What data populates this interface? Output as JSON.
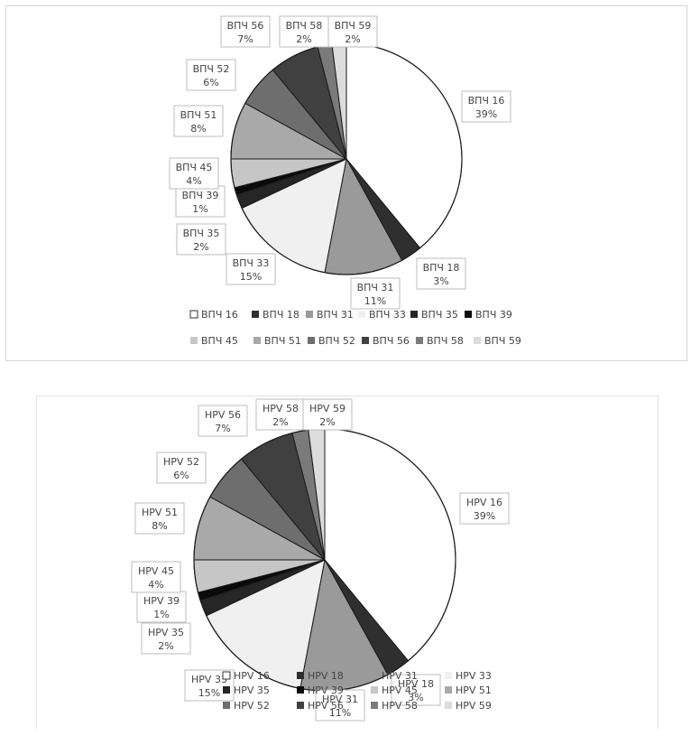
{
  "charts": [
    {
      "chart_data": {
        "type": "pie",
        "categories": [
          "ВПЧ 16",
          "ВПЧ 18",
          "ВПЧ 31",
          "ВПЧ 33",
          "ВПЧ 35",
          "ВПЧ 39",
          "ВПЧ 45",
          "ВПЧ 51",
          "ВПЧ 52",
          "ВПЧ 56",
          "ВПЧ 58",
          "ВПЧ 59"
        ],
        "values": [
          39,
          3,
          11,
          15,
          2,
          1,
          4,
          8,
          6,
          7,
          2,
          2
        ],
        "value_labels": [
          "39%",
          "3%",
          "11%",
          "15%",
          "2%",
          "1%",
          "4%",
          "8%",
          "6%",
          "7%",
          "2%",
          "2%"
        ],
        "colors": [
          "#ffffff",
          "#2f2f2f",
          "#9a9a9a",
          "#f0f0f0",
          "#262626",
          "#0a0a0a",
          "#c6c6c6",
          "#a9a9a9",
          "#6e6e6e",
          "#404040",
          "#7a7a7a",
          "#dcdcdc"
        ],
        "legend_position": "bottom",
        "start_angle": "12 o'clock",
        "direction": "clockwise"
      }
    },
    {
      "chart_data": {
        "type": "pie",
        "categories": [
          "HPV 16",
          "HPV 18",
          "HPV 31",
          "HPV 33",
          "HPV 35",
          "HPV 39",
          "HPV 45",
          "HPV 51",
          "HPV 52",
          "HPV 56",
          "HPV 58",
          "HPV 59"
        ],
        "values": [
          39,
          3,
          11,
          15,
          2,
          1,
          4,
          8,
          6,
          7,
          2,
          2
        ],
        "value_labels": [
          "39%",
          "3%",
          "11%",
          "15%",
          "2%",
          "1%",
          "4%",
          "8%",
          "6%",
          "7%",
          "2%",
          "2%"
        ],
        "colors": [
          "#ffffff",
          "#2f2f2f",
          "#9a9a9a",
          "#f0f0f0",
          "#262626",
          "#0a0a0a",
          "#c6c6c6",
          "#a9a9a9",
          "#6e6e6e",
          "#404040",
          "#7a7a7a",
          "#dcdcdc"
        ],
        "legend_position": "bottom (overlapping plot)",
        "start_angle": "12 o'clock",
        "direction": "clockwise"
      }
    }
  ]
}
